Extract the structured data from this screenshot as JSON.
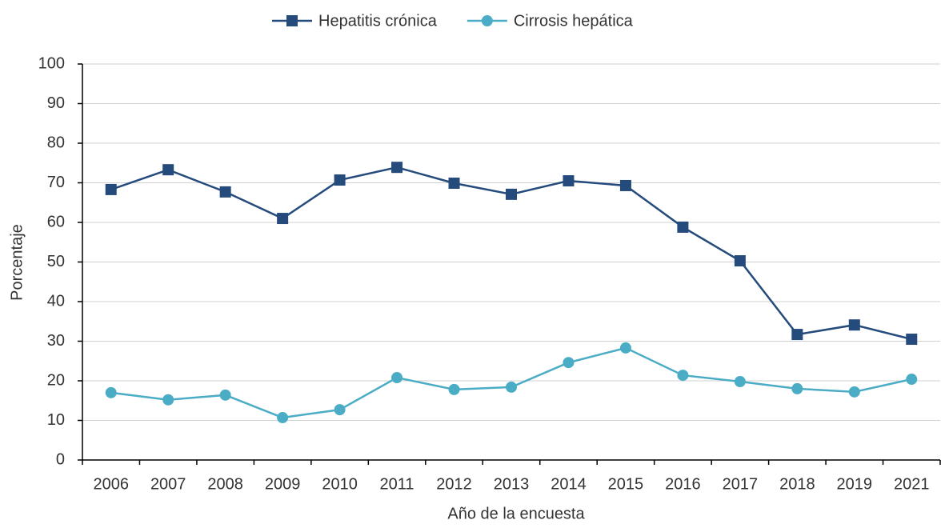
{
  "chart_data": {
    "type": "line",
    "x_label": "Año de la encuesta",
    "y_label": "Porcentaje",
    "categories": [
      "2006",
      "2007",
      "2008",
      "2009",
      "2010",
      "2011",
      "2012",
      "2013",
      "2014",
      "2015",
      "2016",
      "2017",
      "2018",
      "2019",
      "2021"
    ],
    "series": [
      {
        "name": "Hepatitis crónica",
        "color": "#254a7c",
        "marker": "square",
        "values": [
          68.3,
          73.3,
          67.7,
          61.0,
          70.7,
          73.9,
          69.9,
          67.1,
          70.5,
          69.3,
          58.8,
          50.3,
          31.7,
          34.1,
          30.5
        ]
      },
      {
        "name": "Cirrosis hepática",
        "color": "#4bacc6",
        "marker": "circle",
        "values": [
          17.0,
          15.2,
          16.4,
          10.7,
          12.7,
          20.8,
          17.8,
          18.4,
          24.6,
          28.3,
          21.4,
          19.8,
          18.0,
          17.2,
          20.4
        ]
      }
    ],
    "ylim": [
      0,
      100
    ],
    "yticks": [
      0,
      10,
      20,
      30,
      40,
      50,
      60,
      70,
      80,
      90,
      100
    ],
    "grid": true,
    "legend": "top"
  }
}
